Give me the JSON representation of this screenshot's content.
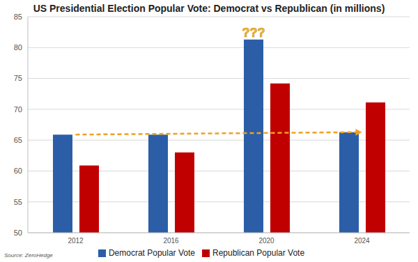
{
  "chart_data": {
    "type": "bar",
    "title": "US Presidential Election Popular Vote: Democrat vs Republican (in millions)",
    "source": "Source: ZeroHedge",
    "categories": [
      "2012",
      "2016",
      "2020",
      "2024"
    ],
    "series": [
      {
        "name": "Democrat Popular Vote",
        "color": "#2b5ea7",
        "values": [
          65.9,
          65.9,
          81.3,
          66.3
        ]
      },
      {
        "name": "Republican Popular Vote",
        "color": "#c00000",
        "values": [
          60.9,
          63.0,
          74.2,
          71.1
        ]
      }
    ],
    "ylim": [
      50,
      85
    ],
    "yticks": [
      50,
      55,
      60,
      65,
      70,
      75,
      80,
      85
    ],
    "grid": true,
    "legend": "bottom",
    "annotations": [
      {
        "text": "???",
        "x": "2020",
        "series": "Democrat Popular Vote",
        "color": "#f7c531"
      }
    ],
    "trend_line": {
      "from": {
        "x": "2012",
        "y": 65.9
      },
      "to": {
        "x": "2024",
        "y": 66.3
      },
      "color": "#f0a020",
      "line_style": "dashed"
    }
  }
}
